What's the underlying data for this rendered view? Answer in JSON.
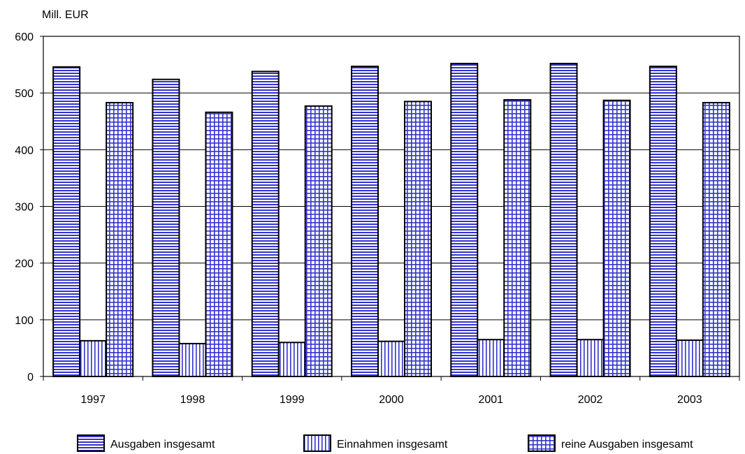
{
  "chart_data": {
    "type": "bar",
    "ylabel": "Mill. EUR",
    "ylim": [
      0,
      600
    ],
    "yticks": [
      0,
      100,
      200,
      300,
      400,
      500,
      600
    ],
    "categories": [
      "1997",
      "1998",
      "1999",
      "2000",
      "2001",
      "2002",
      "2003"
    ],
    "series": [
      {
        "name": "Ausgaben insgesamt",
        "pattern": "horizontal-lines",
        "values": [
          546,
          524,
          538,
          547,
          552,
          552,
          547
        ]
      },
      {
        "name": "Einnahmen insgesamt",
        "pattern": "vertical-lines",
        "values": [
          63,
          58,
          60,
          62,
          65,
          65,
          64
        ]
      },
      {
        "name": "reine Ausgaben insgesamt",
        "pattern": "grid",
        "values": [
          483,
          466,
          477,
          485,
          488,
          487,
          483
        ]
      }
    ],
    "grid": true,
    "legend_position": "bottom",
    "colors": {
      "bar_pattern": "#3333cc",
      "bar_fill": "#ffffff",
      "outline": "#000000",
      "gridline": "#000000"
    }
  }
}
